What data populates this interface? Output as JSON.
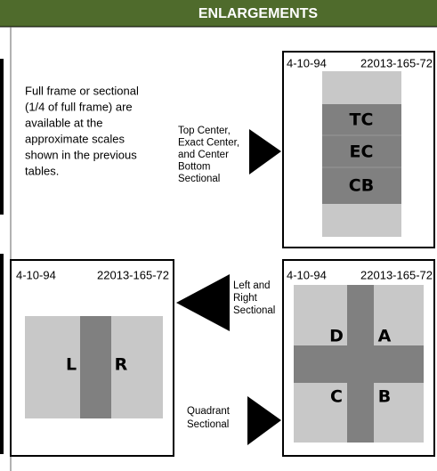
{
  "header": {
    "title": "ENLARGEMENTS"
  },
  "intro": [
    "Full frame or sectional",
    "(1/4 of full frame) are",
    "available at the",
    "approximate scales",
    "shown in the previous",
    "tables."
  ],
  "labels": {
    "center": [
      "Top Center,",
      "Exact Center,",
      "and Center",
      "Bottom",
      "Sectional"
    ],
    "left_right": [
      "Left and",
      "Right",
      "Sectional"
    ],
    "quadrant": [
      "Quadrant",
      "Sectional"
    ]
  },
  "boxes": [
    {
      "date": "4-10-94",
      "code": "22013-165-72",
      "sections": [
        "TC",
        "EC",
        "CB"
      ]
    },
    {
      "date": "4-10-94",
      "code": "22013-165-72",
      "sections": [
        "L",
        "R"
      ]
    },
    {
      "date": "4-10-94",
      "code": "22013-165-72",
      "sections": [
        "D",
        "A",
        "C",
        "B"
      ]
    }
  ]
}
